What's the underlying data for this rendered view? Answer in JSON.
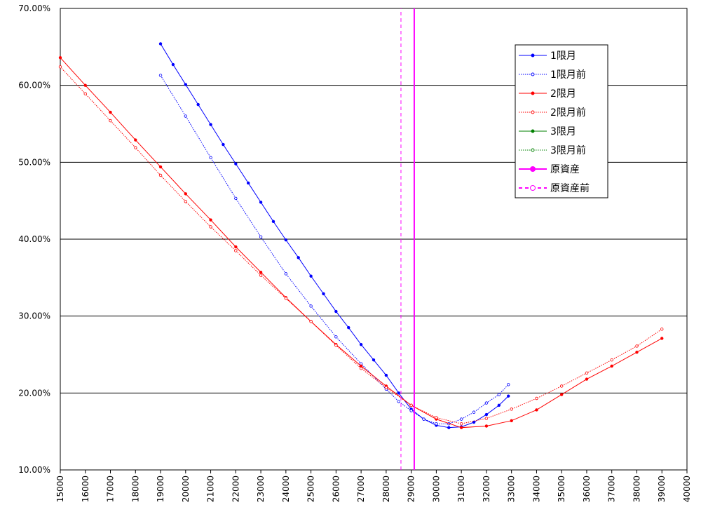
{
  "chart_data": {
    "type": "line",
    "xlim": [
      15000,
      40000
    ],
    "xticks": [
      15000,
      16000,
      17000,
      18000,
      19000,
      20000,
      21000,
      22000,
      23000,
      24000,
      25000,
      26000,
      27000,
      28000,
      29000,
      30000,
      31000,
      32000,
      33000,
      34000,
      35000,
      36000,
      37000,
      38000,
      39000,
      40000
    ],
    "ylim": [
      10,
      70
    ],
    "yticks": [
      {
        "value": 10,
        "label": "10.00%"
      },
      {
        "value": 20,
        "label": "20.00%"
      },
      {
        "value": 30,
        "label": "30.00%"
      },
      {
        "value": 40,
        "label": "40.00%"
      },
      {
        "value": 50,
        "label": "50.00%"
      },
      {
        "value": 60,
        "label": "60.00%"
      },
      {
        "value": 70,
        "label": "70.00%"
      }
    ],
    "grid": true,
    "legend": "upper right",
    "series": [
      {
        "name": "1限月",
        "color": "#0000ff",
        "line": "solid",
        "marker": "filled",
        "x": [
          19000,
          19500,
          20000,
          20500,
          21000,
          21500,
          22000,
          22500,
          23000,
          23500,
          24000,
          24500,
          25000,
          25500,
          26000,
          26500,
          27000,
          27500,
          28000,
          28500,
          29000,
          29500,
          30000,
          30500,
          31000,
          31500,
          32000,
          32500,
          32875
        ],
        "values": [
          65.4,
          62.7,
          60.1,
          57.5,
          54.9,
          52.3,
          49.8,
          47.3,
          44.8,
          42.3,
          39.9,
          37.6,
          35.2,
          32.9,
          30.6,
          28.5,
          26.3,
          24.3,
          22.3,
          20.0,
          17.9,
          16.6,
          15.8,
          15.5,
          15.6,
          16.2,
          17.2,
          18.4,
          19.6
        ]
      },
      {
        "name": "1限月前",
        "color": "#0000ff",
        "line": "dotted",
        "marker": "open",
        "x": [
          19000,
          20000,
          21000,
          22000,
          23000,
          24000,
          25000,
          26000,
          27000,
          28000,
          28500,
          29000,
          29500,
          30000,
          30500,
          31000,
          31500,
          32000,
          32500,
          32875
        ],
        "values": [
          61.3,
          56.0,
          50.6,
          45.3,
          40.3,
          35.5,
          31.3,
          27.3,
          23.8,
          20.5,
          18.9,
          17.7,
          16.6,
          16.0,
          16.0,
          16.6,
          17.5,
          18.7,
          19.8,
          21.1
        ]
      },
      {
        "name": "2限月",
        "color": "#ff0000",
        "line": "solid",
        "marker": "filled",
        "x": [
          15000,
          16000,
          17000,
          18000,
          19000,
          20000,
          21000,
          22000,
          23000,
          24000,
          25000,
          26000,
          27000,
          28000,
          29000,
          30000,
          31000,
          32000,
          33000,
          34000,
          35000,
          36000,
          37000,
          38000,
          39000
        ],
        "values": [
          63.6,
          60.0,
          56.5,
          52.9,
          49.4,
          45.9,
          42.5,
          39.0,
          35.7,
          32.4,
          29.3,
          26.3,
          23.5,
          20.9,
          18.4,
          16.6,
          15.5,
          15.7,
          16.4,
          17.8,
          19.8,
          21.8,
          23.5,
          25.3,
          27.1
        ]
      },
      {
        "name": "2限月前",
        "color": "#ff0000",
        "line": "dotted",
        "marker": "open",
        "x": [
          15000,
          16000,
          17000,
          18000,
          19000,
          20000,
          21000,
          22000,
          23000,
          24000,
          25000,
          26000,
          27000,
          28000,
          29000,
          30000,
          31000,
          32000,
          33000,
          34000,
          35000,
          36000,
          37000,
          38000,
          39000
        ],
        "values": [
          62.4,
          58.9,
          55.4,
          51.9,
          48.3,
          44.9,
          41.6,
          38.5,
          35.3,
          32.3,
          29.3,
          26.2,
          23.2,
          20.7,
          18.4,
          16.8,
          16.0,
          16.7,
          17.9,
          19.3,
          20.9,
          22.6,
          24.3,
          26.1,
          28.3
        ]
      },
      {
        "name": "3限月",
        "color": "#008000",
        "line": "solid",
        "marker": "filled",
        "x": [],
        "values": []
      },
      {
        "name": "3限月前",
        "color": "#008000",
        "line": "dotted",
        "marker": "open",
        "x": [],
        "values": []
      },
      {
        "name": "原資産",
        "color": "#ff00ff",
        "line": "solid",
        "marker": "filled",
        "x": [
          29120,
          29120
        ],
        "values": [
          10,
          70
        ]
      },
      {
        "name": "原資産前",
        "color": "#ff00ff",
        "line": "dashed",
        "marker": "open",
        "x": [
          28590,
          28590
        ],
        "values": [
          10,
          70
        ]
      }
    ]
  }
}
